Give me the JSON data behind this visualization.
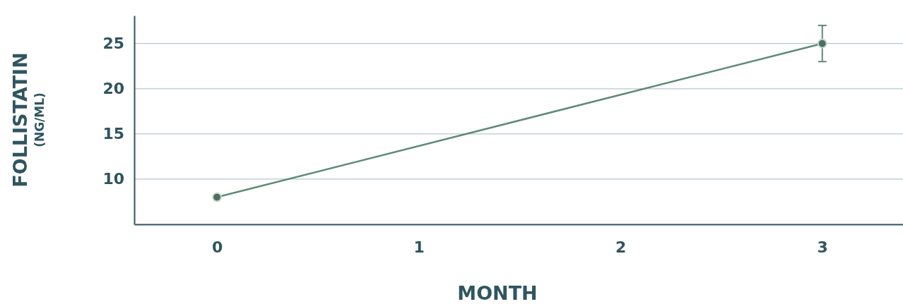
{
  "chart_data": {
    "type": "line",
    "xlabel": "MONTH",
    "ylabel": "FOLLISTATIN\n(NG/ML)",
    "x": [
      0,
      3
    ],
    "series": [
      {
        "color": "#5e8a78",
        "values": [
          8,
          25
        ],
        "errors": [
          null,
          2
        ]
      }
    ],
    "xlim": [
      -0.41,
      3.4
    ],
    "xticks": [
      0,
      1,
      2,
      3
    ],
    "ylim": [
      5,
      28.1
    ],
    "yticks": [
      10,
      15,
      20,
      25
    ],
    "grid": "y",
    "marker": "circle",
    "line_style": "solid"
  }
}
